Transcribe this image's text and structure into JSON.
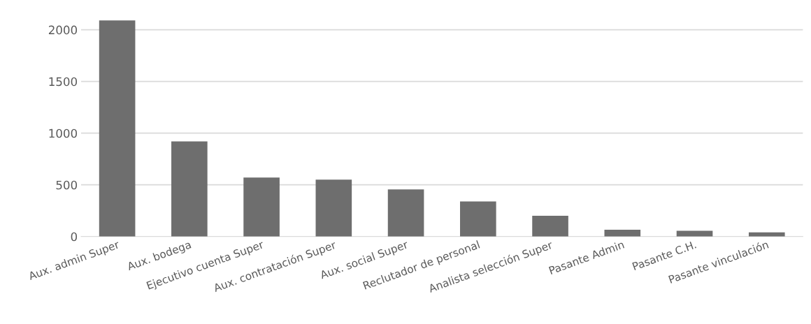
{
  "chart_data": {
    "type": "bar",
    "categories": [
      "Aux. admin Super",
      "Aux. bodega",
      "Ejecutivo cuenta Super",
      "Aux. contratación Super",
      "Aux. social Super",
      "Reclutador de personal",
      "Analista selección Super",
      "Pasante Admin",
      "Pasante C.H.",
      "Pasante vinculación"
    ],
    "values": [
      2090,
      920,
      570,
      550,
      455,
      340,
      200,
      65,
      55,
      40
    ],
    "color": "#6e6e6e",
    "ylim": [
      0,
      2100
    ],
    "yticks": [
      0,
      500,
      1000,
      1500,
      2000
    ],
    "grid": "y"
  }
}
